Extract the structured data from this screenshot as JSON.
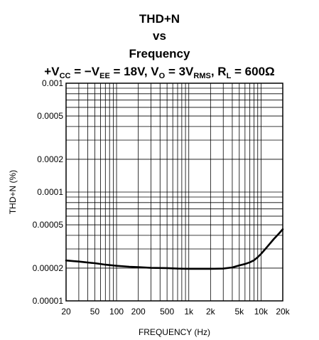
{
  "title_lines": [
    "THD+N",
    "vs",
    "Frequency"
  ],
  "condition": {
    "p1": "+V",
    "s1": "CC",
    "p2": " = −V",
    "s2": "EE",
    "p3": " = 18V, V",
    "s3": "O",
    "p4": " = 3V",
    "s4": "RMS",
    "p5": ", R",
    "s5": "L",
    "p6": " = 600Ω"
  },
  "chart_data": {
    "type": "line",
    "xlabel": "FREQUENCY (Hz)",
    "ylabel": "THD+N (%)",
    "xscale": "log",
    "yscale": "log",
    "xlim": [
      20,
      20000
    ],
    "ylim": [
      1e-05,
      0.001
    ],
    "grid": true,
    "x_tick_values": [
      20,
      50,
      100,
      200,
      500,
      1000,
      2000,
      5000,
      10000,
      20000
    ],
    "x_tick_labels": [
      "20",
      "50",
      "100",
      "200",
      "500",
      "1k",
      "2k",
      "5k",
      "10k",
      "20k"
    ],
    "y_tick_values": [
      1e-05,
      2e-05,
      5e-05,
      0.0001,
      0.0002,
      0.0005,
      0.001
    ],
    "y_tick_labels": [
      "0.00001",
      "0.00002",
      "0.00005",
      "0.0001",
      "0.0002",
      "0.0005",
      "0.001"
    ],
    "series": [
      {
        "x": [
          20,
          25,
          30,
          40,
          50,
          70,
          100,
          150,
          200,
          300,
          500,
          700,
          1000,
          1500,
          2000,
          3000,
          4000,
          5000,
          6000,
          7000,
          8000,
          9000,
          10000,
          12000,
          15000,
          18000,
          20000
        ],
        "y": [
          2.35e-05,
          2.32e-05,
          2.3e-05,
          2.25e-05,
          2.22e-05,
          2.15e-05,
          2.1e-05,
          2.06e-05,
          2.04e-05,
          2.01e-05,
          2e-05,
          1.98e-05,
          1.97e-05,
          1.97e-05,
          1.97e-05,
          1.98e-05,
          2.03e-05,
          2.12e-05,
          2.18e-05,
          2.26e-05,
          2.36e-05,
          2.52e-05,
          2.7e-05,
          3.1e-05,
          3.7e-05,
          4.2e-05,
          4.55e-05
        ],
        "color": "#000000"
      }
    ]
  }
}
